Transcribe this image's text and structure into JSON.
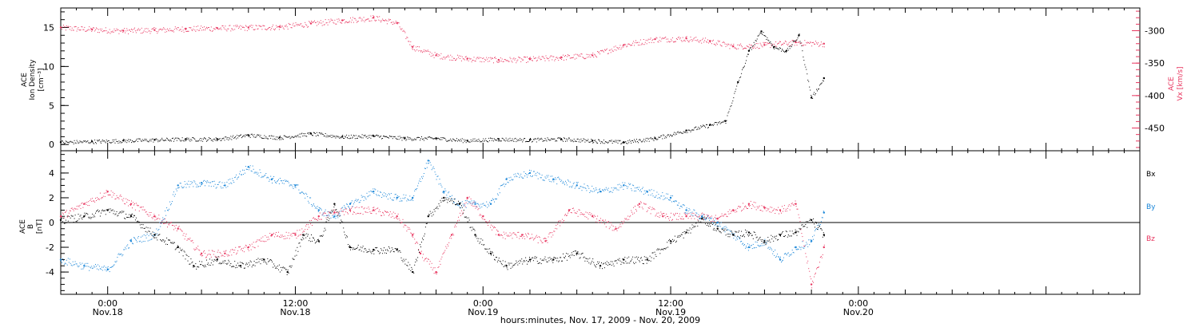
{
  "colors": {
    "black": "#000000",
    "red": "#e8355f",
    "blue": "#1a86d8"
  },
  "time": {
    "start_h": -3,
    "end_h": 66,
    "major_ticks": [
      {
        "h": 0,
        "time": "0:00",
        "date": "Nov.18"
      },
      {
        "h": 12,
        "time": "12:00",
        "date": "Nov.18"
      },
      {
        "h": 24,
        "time": "0:00",
        "date": "Nov.19"
      },
      {
        "h": 36,
        "time": "12:00",
        "date": "Nov.19"
      },
      {
        "h": 48,
        "time": "0:00",
        "date": "Nov.20"
      }
    ],
    "xlabel": "hours:minutes, Nov. 17, 2009 - Nov. 20, 2009"
  },
  "panels": {
    "top": {
      "left_label": {
        "line1": "ACE",
        "line2": "Ion Density",
        "line3": "[cm⁻³]"
      },
      "right_label": {
        "line1": "ACE",
        "line2": "Vx [km/s]"
      },
      "left_ticks": [
        "0",
        "5",
        "10",
        "15"
      ],
      "right_ticks": [
        "-300",
        "-350",
        "-400",
        "-450"
      ]
    },
    "bottom": {
      "left_label": {
        "line1": "ACE",
        "line2": "B",
        "line3": "[nT]"
      },
      "left_ticks": [
        "4",
        "2",
        "0",
        "-2",
        "-4"
      ],
      "legend": {
        "bx": "Bx",
        "by": "By",
        "bz": "Bz"
      }
    }
  },
  "chart_data": [
    {
      "type": "scatter",
      "title": "",
      "xlabel": "hours:minutes, Nov. 17, 2009 - Nov. 20, 2009",
      "series": [
        {
          "name": "Ion Density",
          "axis": "left",
          "ylim": [
            -0.8,
            17.5
          ],
          "x": [
            -3,
            -1,
            1,
            3,
            5,
            7,
            9,
            11,
            13,
            15,
            17,
            19,
            21,
            23,
            25,
            27,
            29,
            31,
            33,
            35,
            37,
            38.5,
            39.5,
            40.3,
            41,
            41.8,
            42.6,
            43.4,
            44.2,
            45,
            45.8
          ],
          "y": [
            0.3,
            0.4,
            0.5,
            0.6,
            0.7,
            0.7,
            1.2,
            0.9,
            1.4,
            1.0,
            1.1,
            0.8,
            0.8,
            0.5,
            0.7,
            0.6,
            0.7,
            0.5,
            0.3,
            0.8,
            1.8,
            2.5,
            3.0,
            8.0,
            12.0,
            14.5,
            12.5,
            12.0,
            14.0,
            6.0,
            8.5
          ]
        },
        {
          "name": "Vx",
          "axis": "right",
          "ylim": [
            -485,
            -265
          ],
          "x": [
            -3,
            -1,
            1,
            3,
            5,
            7,
            9,
            11,
            13,
            15,
            17,
            18.5,
            19.5,
            21,
            23,
            25,
            27,
            29,
            31,
            33,
            35,
            37,
            38.5,
            40,
            42,
            44,
            45.8
          ],
          "y": [
            -295,
            -298,
            -300,
            -299,
            -297,
            -296,
            -295,
            -294,
            -289,
            -284,
            -280,
            -288,
            -325,
            -338,
            -343,
            -345,
            -344,
            -341,
            -338,
            -322,
            -313,
            -312,
            -316,
            -324,
            -322,
            -318,
            -320
          ]
        }
      ]
    },
    {
      "type": "scatter",
      "title": "",
      "series": [
        {
          "name": "Bx",
          "ylim": [
            -5.8,
            5.8
          ],
          "x": [
            -3,
            -1.5,
            0,
            1.5,
            3,
            4.5,
            5.5,
            7,
            8.5,
            10,
            11.5,
            12.5,
            13.5,
            14.5,
            15.5,
            17,
            18.5,
            19.5,
            20.5,
            21.5,
            22.5,
            23.5,
            24.5,
            25.5,
            27,
            28.5,
            30,
            31.5,
            33,
            34.5,
            36,
            37,
            38,
            39,
            40,
            41,
            42,
            43,
            44,
            45,
            45.8
          ],
          "y": [
            0.2,
            0.5,
            1.0,
            0.5,
            -1.0,
            -2.0,
            -3.5,
            -3.0,
            -3.5,
            -3.0,
            -4.0,
            -1.0,
            -1.5,
            1.5,
            -2.0,
            -2.2,
            -2.2,
            -4.0,
            0.5,
            2.0,
            1.5,
            -1.0,
            -2.5,
            -3.5,
            -3.0,
            -3.0,
            -2.5,
            -3.5,
            -3.0,
            -3.0,
            -1.5,
            -0.8,
            0.3,
            -0.5,
            -1.0,
            -0.8,
            -1.5,
            -1.0,
            -0.8,
            0.2,
            -1.0
          ]
        },
        {
          "name": "By",
          "ylim": [
            -5.8,
            5.8
          ],
          "x": [
            -3,
            -1.5,
            0,
            1.5,
            3,
            4.5,
            6,
            7.5,
            9,
            10.5,
            12,
            13.5,
            14.5,
            15.5,
            17,
            18.5,
            19.5,
            20.5,
            21.5,
            22.5,
            23.5,
            24.5,
            25.5,
            27,
            28.5,
            30,
            31.5,
            33,
            34.5,
            36,
            37,
            38,
            39,
            40,
            41,
            42,
            43,
            44,
            45,
            45.8
          ],
          "y": [
            -3.0,
            -3.5,
            -3.8,
            -1.5,
            -1.0,
            3.0,
            3.2,
            3.0,
            4.5,
            3.5,
            3.0,
            1.0,
            0.5,
            1.5,
            2.5,
            2.0,
            2.0,
            5.0,
            2.5,
            1.5,
            1.5,
            1.5,
            3.5,
            4.0,
            3.5,
            3.0,
            2.5,
            3.0,
            2.5,
            2.0,
            1.0,
            0.5,
            0.0,
            -1.0,
            -2.0,
            -1.5,
            -3.0,
            -2.0,
            -1.5,
            0.8
          ]
        },
        {
          "name": "Bz",
          "ylim": [
            -5.8,
            5.8
          ],
          "x": [
            -3,
            -1.5,
            0,
            1.5,
            3,
            4.5,
            6,
            7.5,
            9,
            10.5,
            12,
            13.5,
            14.5,
            15.5,
            17,
            18.5,
            19.5,
            20,
            21,
            22,
            23,
            24,
            25,
            26.5,
            28,
            29.5,
            31,
            32.5,
            34,
            35.5,
            37,
            38,
            39,
            40,
            41,
            42,
            43,
            44,
            45,
            45.8
          ],
          "y": [
            0.5,
            1.5,
            2.5,
            1.5,
            0.5,
            -0.5,
            -2.5,
            -2.5,
            -2.0,
            -1.0,
            -1.0,
            0.5,
            0.8,
            1.0,
            1.0,
            0.5,
            -1.0,
            -2.5,
            -4.0,
            -1.0,
            2.0,
            0.5,
            -1.0,
            -1.0,
            -1.5,
            1.0,
            0.5,
            -0.5,
            1.5,
            0.5,
            0.5,
            0.5,
            0.3,
            1.0,
            1.5,
            1.2,
            1.0,
            1.5,
            -5.0,
            -2.0
          ]
        }
      ]
    }
  ]
}
